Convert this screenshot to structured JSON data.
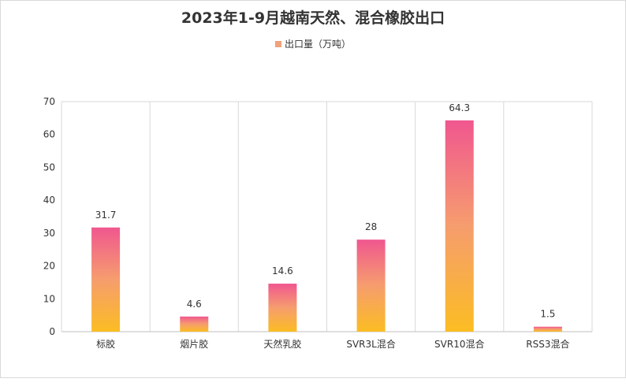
{
  "chart_data": {
    "type": "bar",
    "title": "2023年1-9月越南天然、混合橡胶出口",
    "categories": [
      "标胶",
      "烟片胶",
      "天然乳胶",
      "SVR3L混合",
      "SVR10混合",
      "RSS3混合"
    ],
    "series": [
      {
        "name": "出口量（万吨）",
        "values": [
          31.7,
          4.6,
          14.6,
          28,
          64.3,
          1.5
        ]
      }
    ],
    "y_ticks": [
      "0",
      "10",
      "20",
      "30",
      "40",
      "50",
      "60",
      "70"
    ],
    "ylim": [
      0,
      70
    ],
    "data_labels": [
      "31.7",
      "4.6",
      "14.6",
      "28",
      "64.3",
      "1.5"
    ],
    "grid": "vertical category separators",
    "legend_position": "top-center",
    "colors": {
      "bar_top": "#f0578f",
      "bar_mid": "#f69d6e",
      "bar_bottom": "#fbbd23"
    }
  }
}
